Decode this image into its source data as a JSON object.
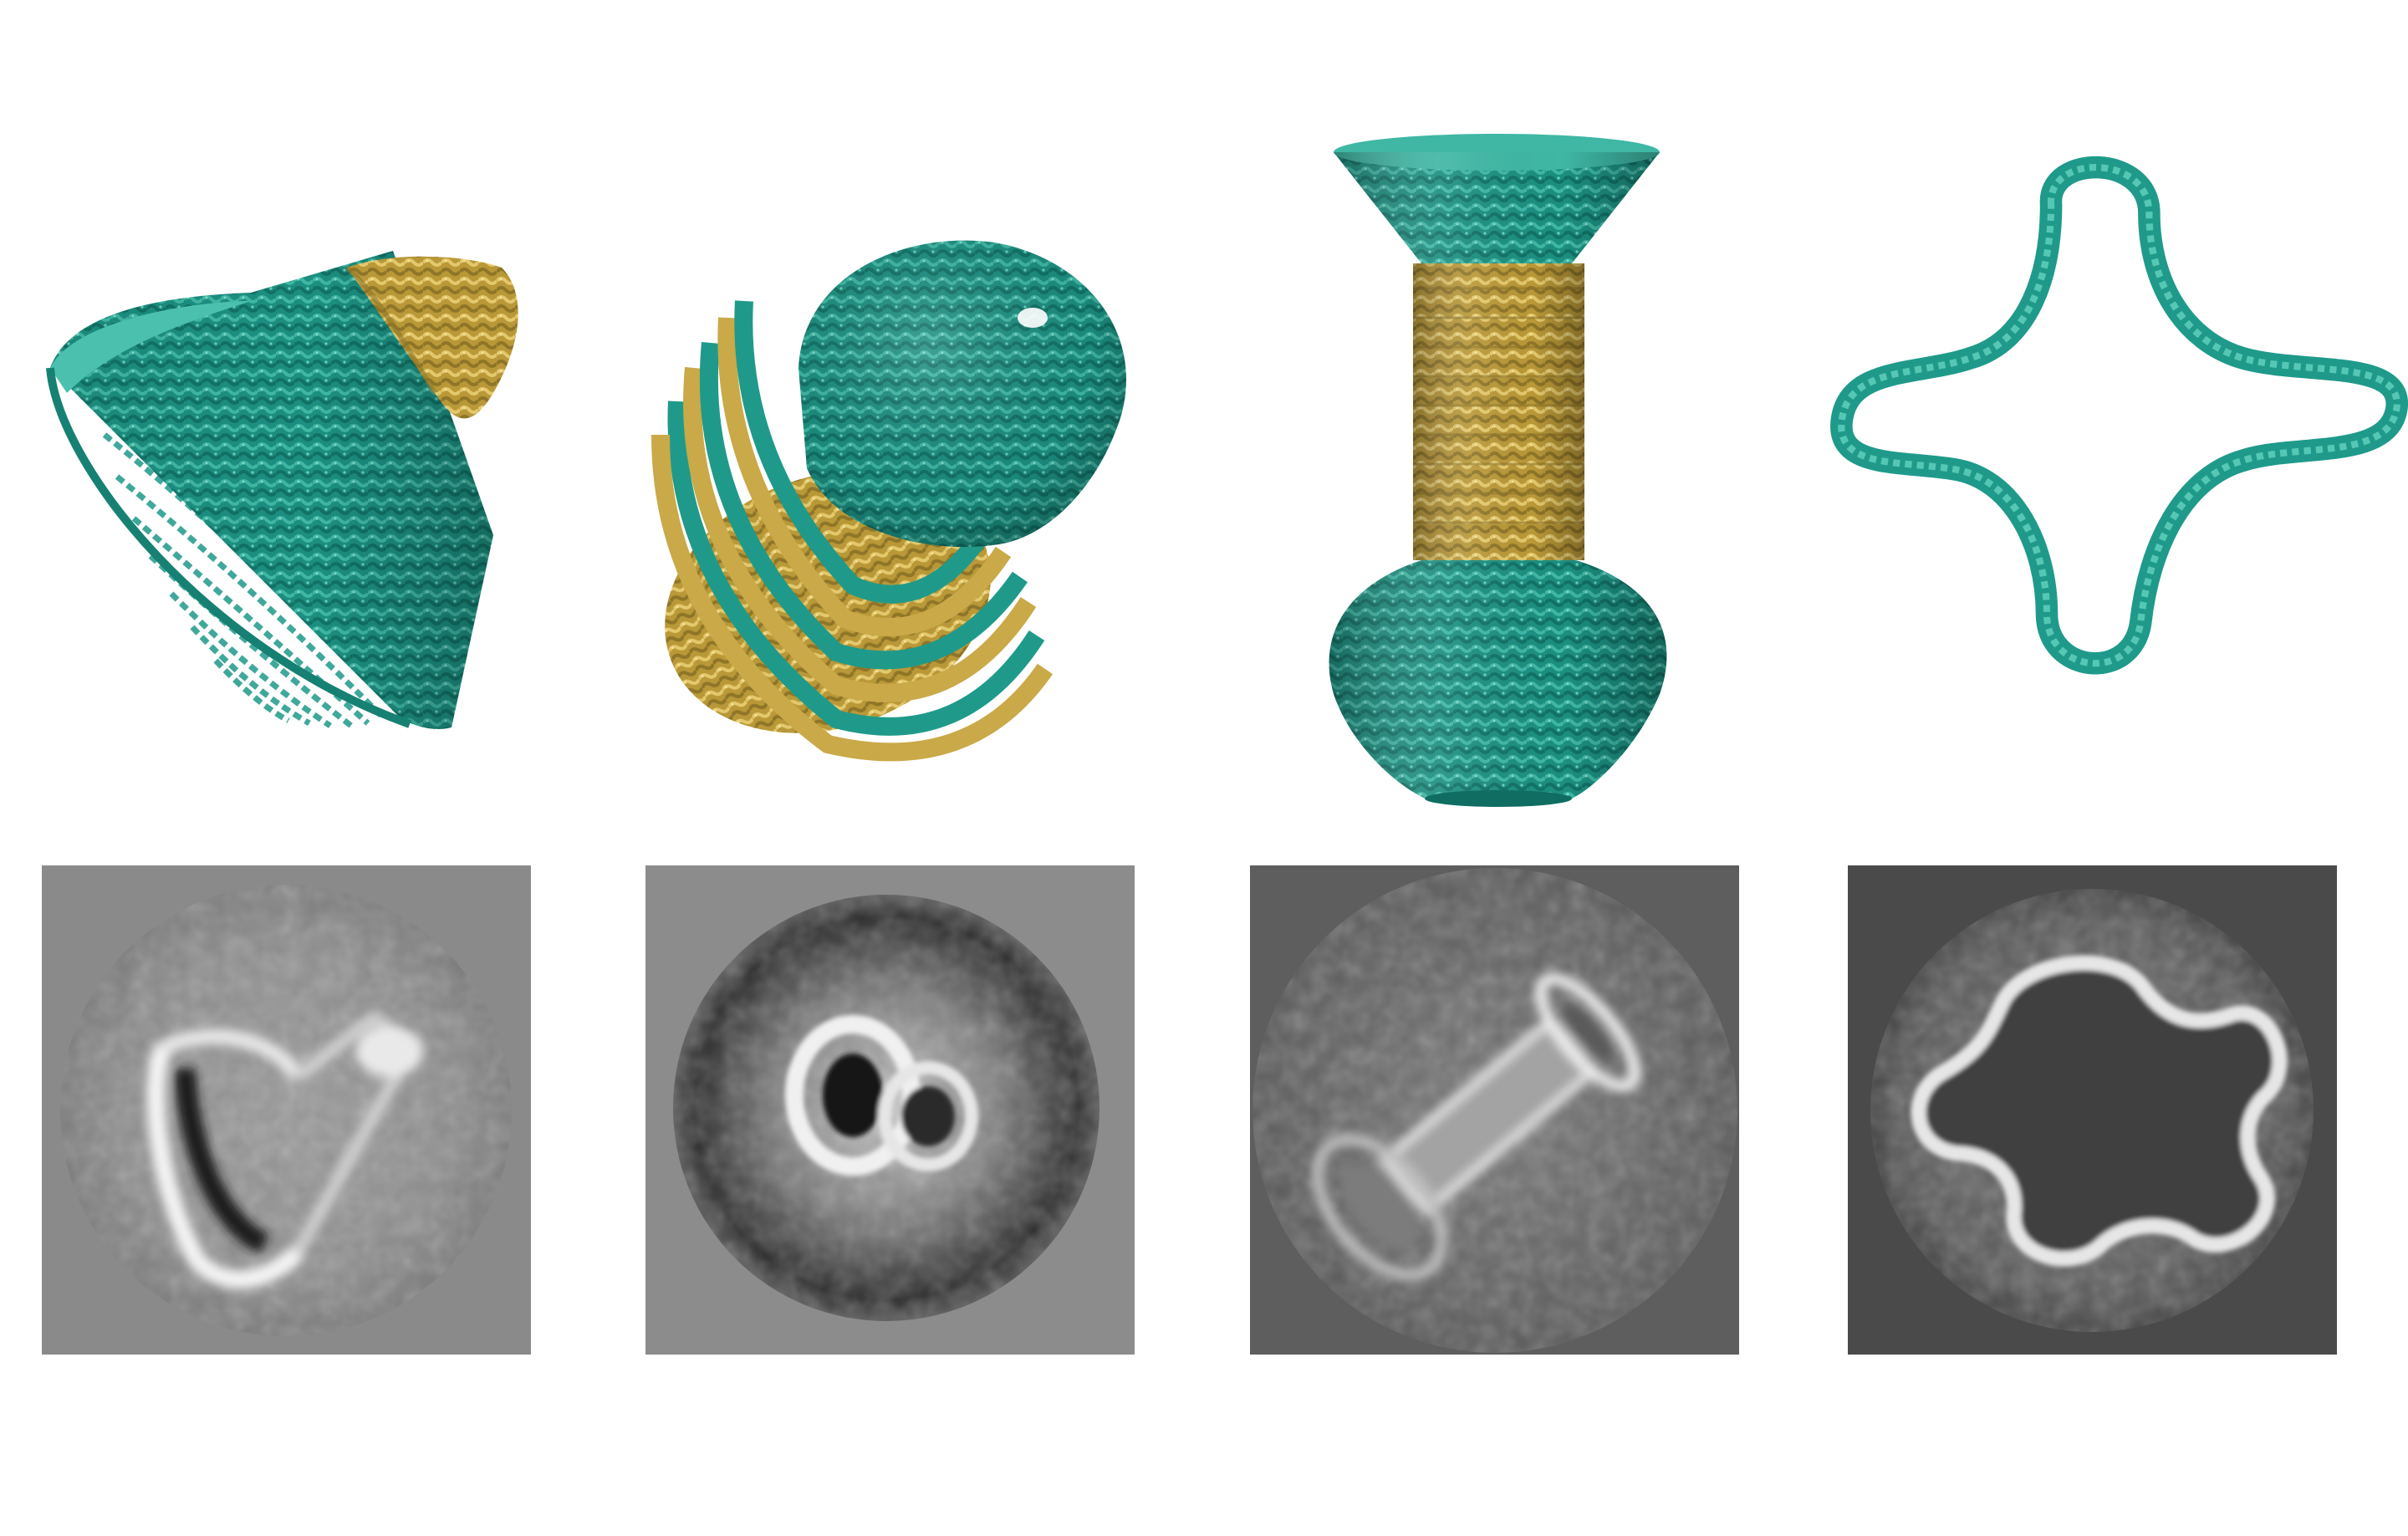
{
  "figure": {
    "background": "#ffffff",
    "colors": {
      "teal": "#1f9a8a",
      "teal_dark": "#0f6d62",
      "teal_light": "#4cc0ae",
      "gold": "#c9a948",
      "gold_dark": "#8e7528",
      "gold_light": "#e3c86c"
    },
    "models": [
      {
        "name": "dna-origami-cone-model"
      },
      {
        "name": "dna-origami-bell-model"
      },
      {
        "name": "dna-origami-vase-model"
      },
      {
        "name": "dna-origami-ring-model"
      }
    ],
    "micrographs": [
      {
        "name": "cone-class-average",
        "background": "#8a8a8a"
      },
      {
        "name": "bell-class-average",
        "background": "#8c8c8c"
      },
      {
        "name": "vase-class-average",
        "background": "#5e5e5e"
      },
      {
        "name": "ring-class-average",
        "background": "#4a4a4a"
      }
    ]
  }
}
